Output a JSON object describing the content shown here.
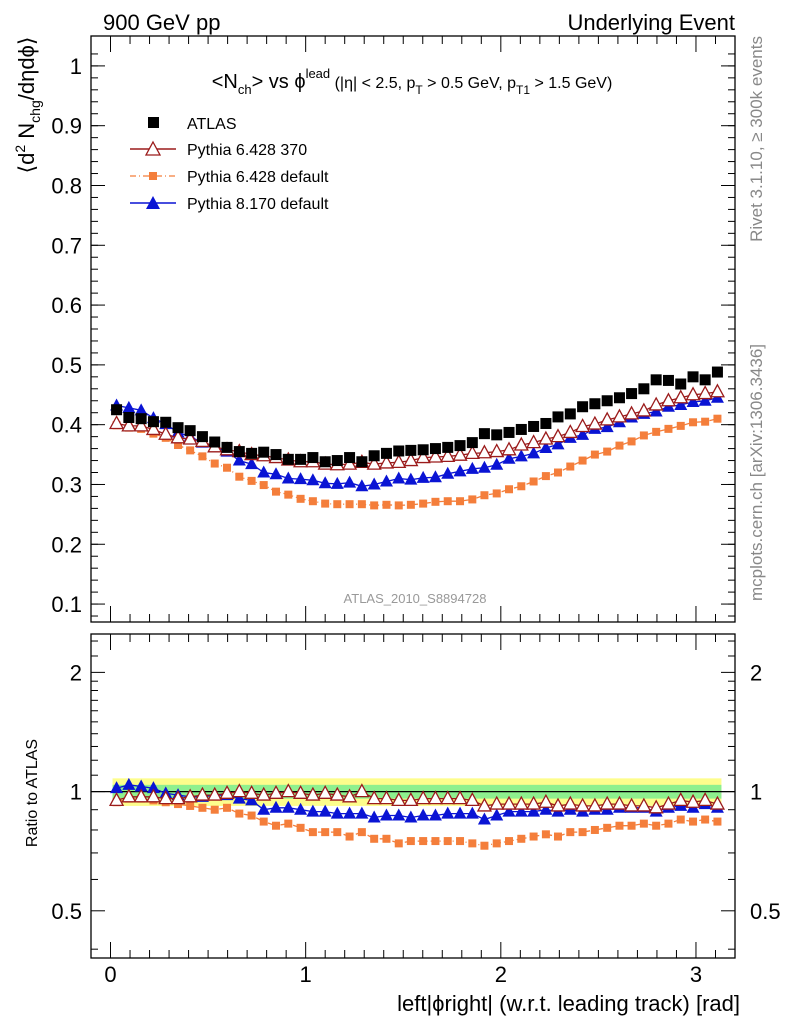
{
  "header": {
    "left": "900 GeV pp",
    "right": "Underlying Event"
  },
  "side_labels": {
    "rivet": "Rivet 3.1.10, ≥ 300k events",
    "mcplots": "mcplots.cern.ch [arXiv:1306.3436]"
  },
  "analysis_id": "ATLAS_2010_S8894728",
  "colors": {
    "atlas": "#000000",
    "py370": "#9b1b1b",
    "pydef": "#f47e3b",
    "py8": "#0a14d4",
    "band_inner": "#8ef08e",
    "band_outer": "#fdfd8c"
  },
  "chart_data": [
    {
      "type": "scatter",
      "panel": "main",
      "title": "<Nch> vs φlead (|η| < 2.5, pT > 0.5 GeV, pT1 > 1.5 GeV)",
      "title_parts": {
        "a": "<N",
        "a_sub": "ch",
        "b": "> vs ϕ",
        "b_sup": "lead",
        "c": " (|η| < 2.5, p",
        "c_sub": "T",
        "d": " > 0.5 GeV, p",
        "d_sub": "T1",
        "e": " > 1.5 GeV)"
      },
      "ylabel": "⟨d² Nchg/dηdϕ⟩",
      "ylabel_parts": {
        "a": "⟨d",
        "a_sup": "2",
        "b": " N",
        "b_sub": "chg",
        "c": "/dηdϕ⟩"
      },
      "xlim": [
        -0.1,
        3.2
      ],
      "ylim": [
        0.07,
        1.05
      ],
      "x_ticks": [
        0,
        1,
        2,
        3
      ],
      "y_ticks": [
        0.1,
        0.2,
        0.3,
        0.4,
        0.5,
        0.6,
        0.7,
        0.8,
        0.9,
        1
      ],
      "y_tick_labels": [
        "0.1",
        "0.2",
        "0.3",
        "0.4",
        "0.5",
        "0.6",
        "0.7",
        "0.8",
        "0.9",
        "1"
      ],
      "legend_position": "top-left",
      "x": [
        0.031,
        0.094,
        0.157,
        0.22,
        0.283,
        0.346,
        0.408,
        0.471,
        0.534,
        0.597,
        0.66,
        0.723,
        0.785,
        0.848,
        0.911,
        0.974,
        1.037,
        1.1,
        1.162,
        1.225,
        1.288,
        1.351,
        1.414,
        1.477,
        1.539,
        1.602,
        1.665,
        1.728,
        1.791,
        1.854,
        1.916,
        1.979,
        2.042,
        2.105,
        2.168,
        2.231,
        2.293,
        2.356,
        2.419,
        2.482,
        2.545,
        2.608,
        2.67,
        2.733,
        2.796,
        2.859,
        2.922,
        2.985,
        3.047,
        3.11
      ],
      "series": [
        {
          "name": "ATLAS",
          "marker": "filled-square",
          "values": [
            0.425,
            0.412,
            0.41,
            0.405,
            0.404,
            0.395,
            0.39,
            0.38,
            0.371,
            0.362,
            0.355,
            0.352,
            0.354,
            0.35,
            0.342,
            0.342,
            0.345,
            0.338,
            0.34,
            0.345,
            0.338,
            0.348,
            0.352,
            0.356,
            0.357,
            0.358,
            0.36,
            0.362,
            0.365,
            0.37,
            0.385,
            0.383,
            0.387,
            0.392,
            0.397,
            0.402,
            0.413,
            0.418,
            0.43,
            0.435,
            0.44,
            0.445,
            0.452,
            0.46,
            0.475,
            0.474,
            0.468,
            0.48,
            0.475,
            0.488
          ]
        },
        {
          "name": "Pythia 6.428 370",
          "marker": "open-triangle",
          "line": true,
          "values": [
            0.402,
            0.398,
            0.398,
            0.392,
            0.384,
            0.378,
            0.376,
            0.372,
            0.363,
            0.358,
            0.355,
            0.35,
            0.348,
            0.345,
            0.341,
            0.338,
            0.338,
            0.334,
            0.333,
            0.334,
            0.337,
            0.334,
            0.336,
            0.337,
            0.34,
            0.345,
            0.346,
            0.347,
            0.349,
            0.352,
            0.353,
            0.355,
            0.358,
            0.366,
            0.37,
            0.376,
            0.38,
            0.387,
            0.397,
            0.401,
            0.408,
            0.413,
            0.418,
            0.423,
            0.433,
            0.44,
            0.445,
            0.45,
            0.452,
            0.455
          ]
        },
        {
          "name": "Pythia 6.428 default",
          "marker": "filled-square",
          "line": "dash-dot",
          "values": [
            0.399,
            0.395,
            0.393,
            0.385,
            0.378,
            0.366,
            0.357,
            0.347,
            0.335,
            0.328,
            0.313,
            0.306,
            0.299,
            0.288,
            0.283,
            0.276,
            0.272,
            0.268,
            0.267,
            0.267,
            0.267,
            0.265,
            0.266,
            0.265,
            0.266,
            0.268,
            0.271,
            0.272,
            0.272,
            0.275,
            0.282,
            0.285,
            0.292,
            0.297,
            0.305,
            0.314,
            0.32,
            0.33,
            0.34,
            0.35,
            0.355,
            0.365,
            0.372,
            0.382,
            0.388,
            0.393,
            0.398,
            0.404,
            0.405,
            0.41
          ]
        },
        {
          "name": "Pythia 8.170 default",
          "marker": "filled-triangle",
          "line": true,
          "values": [
            0.432,
            0.428,
            0.424,
            0.411,
            0.401,
            0.387,
            0.38,
            0.37,
            0.362,
            0.355,
            0.34,
            0.334,
            0.32,
            0.317,
            0.31,
            0.309,
            0.307,
            0.302,
            0.301,
            0.303,
            0.297,
            0.3,
            0.305,
            0.31,
            0.308,
            0.311,
            0.312,
            0.318,
            0.322,
            0.326,
            0.328,
            0.333,
            0.343,
            0.347,
            0.352,
            0.361,
            0.367,
            0.378,
            0.383,
            0.393,
            0.396,
            0.404,
            0.412,
            0.418,
            0.422,
            0.43,
            0.433,
            0.438,
            0.44,
            0.445
          ]
        }
      ]
    },
    {
      "type": "scatter",
      "panel": "ratio",
      "ylabel": "Ratio to ATLAS",
      "xlabel": "left|ϕright| (w.r.t. leading track) [rad]",
      "xlim": [
        -0.1,
        3.2
      ],
      "ylim": [
        0.38,
        2.5
      ],
      "y_log": true,
      "x_ticks": [
        0,
        1,
        2,
        3
      ],
      "x_tick_labels": [
        "0",
        "1",
        "2",
        "3"
      ],
      "y_ticks": [
        0.5,
        1,
        2
      ],
      "y_tick_labels": [
        "0.5",
        "1",
        "2"
      ],
      "reference_line": 1,
      "uncertainty_band": {
        "inner": [
          0.96,
          1.04
        ],
        "outer": [
          0.92,
          1.08
        ]
      },
      "x": [
        0.031,
        0.094,
        0.157,
        0.22,
        0.283,
        0.346,
        0.408,
        0.471,
        0.534,
        0.597,
        0.66,
        0.723,
        0.785,
        0.848,
        0.911,
        0.974,
        1.037,
        1.1,
        1.162,
        1.225,
        1.288,
        1.351,
        1.414,
        1.477,
        1.539,
        1.602,
        1.665,
        1.728,
        1.791,
        1.854,
        1.916,
        1.979,
        2.042,
        2.105,
        2.168,
        2.231,
        2.293,
        2.356,
        2.419,
        2.482,
        2.545,
        2.608,
        2.67,
        2.733,
        2.796,
        2.859,
        2.922,
        2.985,
        3.047,
        3.11
      ],
      "series": [
        {
          "name": "Pythia 6.428 370",
          "marker": "open-triangle",
          "line": true,
          "values": [
            0.95,
            0.97,
            0.97,
            0.97,
            0.96,
            0.96,
            0.97,
            0.98,
            0.98,
            0.99,
            1.0,
            0.99,
            0.98,
            0.99,
            1.0,
            0.99,
            0.98,
            0.99,
            0.98,
            0.97,
            1.0,
            0.96,
            0.96,
            0.95,
            0.95,
            0.96,
            0.96,
            0.96,
            0.96,
            0.95,
            0.92,
            0.93,
            0.93,
            0.93,
            0.93,
            0.94,
            0.92,
            0.93,
            0.92,
            0.92,
            0.93,
            0.93,
            0.92,
            0.92,
            0.91,
            0.93,
            0.95,
            0.94,
            0.95,
            0.93
          ]
        },
        {
          "name": "Pythia 6.428 default",
          "marker": "filled-square",
          "line": "dash-dot",
          "values": [
            0.94,
            0.96,
            0.96,
            0.95,
            0.94,
            0.93,
            0.92,
            0.91,
            0.9,
            0.91,
            0.88,
            0.87,
            0.84,
            0.82,
            0.83,
            0.81,
            0.79,
            0.79,
            0.79,
            0.77,
            0.79,
            0.76,
            0.76,
            0.74,
            0.75,
            0.75,
            0.75,
            0.75,
            0.75,
            0.74,
            0.73,
            0.74,
            0.75,
            0.76,
            0.77,
            0.78,
            0.77,
            0.79,
            0.79,
            0.8,
            0.81,
            0.82,
            0.82,
            0.83,
            0.82,
            0.83,
            0.85,
            0.84,
            0.85,
            0.84
          ]
        },
        {
          "name": "Pythia 8.170 default",
          "marker": "filled-triangle",
          "line": true,
          "values": [
            1.02,
            1.04,
            1.03,
            1.02,
            0.99,
            0.98,
            0.97,
            0.97,
            0.98,
            0.98,
            0.96,
            0.95,
            0.9,
            0.91,
            0.91,
            0.9,
            0.89,
            0.89,
            0.88,
            0.88,
            0.88,
            0.86,
            0.87,
            0.87,
            0.86,
            0.87,
            0.87,
            0.88,
            0.88,
            0.88,
            0.85,
            0.87,
            0.89,
            0.89,
            0.89,
            0.9,
            0.89,
            0.9,
            0.89,
            0.9,
            0.9,
            0.91,
            0.91,
            0.91,
            0.89,
            0.91,
            0.92,
            0.91,
            0.93,
            0.91
          ]
        }
      ]
    }
  ]
}
